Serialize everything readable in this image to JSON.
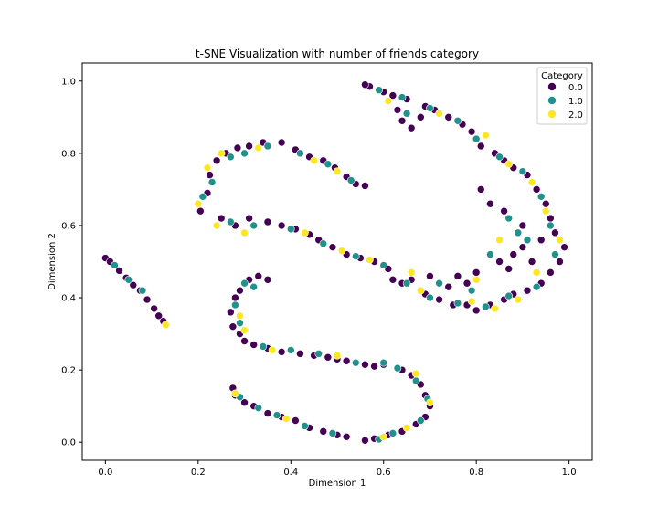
{
  "chart_data": {
    "type": "scatter",
    "title": "t-SNE Visualization with number of friends category",
    "xlabel": "Dimension 1",
    "ylabel": "Dimension 2",
    "xlim": [
      -0.05,
      1.05
    ],
    "ylim": [
      -0.05,
      1.05
    ],
    "xticks": [
      0.0,
      0.2,
      0.4,
      0.6,
      0.8,
      1.0
    ],
    "yticks": [
      0.0,
      0.2,
      0.4,
      0.6,
      0.8,
      1.0
    ],
    "xtick_labels": [
      "0.0",
      "0.2",
      "0.4",
      "0.6",
      "0.8",
      "1.0"
    ],
    "ytick_labels": [
      "0.0",
      "0.2",
      "0.4",
      "0.6",
      "0.8",
      "1.0"
    ],
    "grid": false,
    "legend": {
      "title": "Category",
      "placement": "top-right",
      "entries": [
        "0.0",
        "1.0",
        "2.0"
      ]
    },
    "colors": {
      "0.0": "#440154",
      "1.0": "#21918c",
      "2.0": "#fde725"
    },
    "series": [
      {
        "name": "0.0",
        "points": [
          [
            0.0,
            0.51
          ],
          [
            0.01,
            0.5
          ],
          [
            0.03,
            0.475
          ],
          [
            0.045,
            0.455
          ],
          [
            0.06,
            0.435
          ],
          [
            0.075,
            0.42
          ],
          [
            0.09,
            0.395
          ],
          [
            0.105,
            0.37
          ],
          [
            0.115,
            0.35
          ],
          [
            0.125,
            0.335
          ],
          [
            0.205,
            0.64
          ],
          [
            0.22,
            0.69
          ],
          [
            0.225,
            0.74
          ],
          [
            0.24,
            0.78
          ],
          [
            0.26,
            0.8
          ],
          [
            0.285,
            0.815
          ],
          [
            0.31,
            0.82
          ],
          [
            0.34,
            0.83
          ],
          [
            0.38,
            0.83
          ],
          [
            0.41,
            0.81
          ],
          [
            0.44,
            0.79
          ],
          [
            0.47,
            0.78
          ],
          [
            0.495,
            0.76
          ],
          [
            0.52,
            0.735
          ],
          [
            0.54,
            0.715
          ],
          [
            0.56,
            0.71
          ],
          [
            0.25,
            0.62
          ],
          [
            0.28,
            0.6
          ],
          [
            0.31,
            0.62
          ],
          [
            0.35,
            0.61
          ],
          [
            0.38,
            0.6
          ],
          [
            0.41,
            0.59
          ],
          [
            0.44,
            0.575
          ],
          [
            0.46,
            0.56
          ],
          [
            0.49,
            0.54
          ],
          [
            0.52,
            0.52
          ],
          [
            0.55,
            0.51
          ],
          [
            0.58,
            0.5
          ],
          [
            0.61,
            0.48
          ],
          [
            0.62,
            0.45
          ],
          [
            0.64,
            0.44
          ],
          [
            0.66,
            0.45
          ],
          [
            0.69,
            0.41
          ],
          [
            0.72,
            0.395
          ],
          [
            0.75,
            0.38
          ],
          [
            0.78,
            0.38
          ],
          [
            0.8,
            0.365
          ],
          [
            0.83,
            0.38
          ],
          [
            0.86,
            0.395
          ],
          [
            0.88,
            0.41
          ],
          [
            0.91,
            0.42
          ],
          [
            0.94,
            0.44
          ],
          [
            0.96,
            0.47
          ],
          [
            0.98,
            0.5
          ],
          [
            0.99,
            0.54
          ],
          [
            0.97,
            0.58
          ],
          [
            0.96,
            0.62
          ],
          [
            0.95,
            0.66
          ],
          [
            0.93,
            0.7
          ],
          [
            0.91,
            0.74
          ],
          [
            0.88,
            0.76
          ],
          [
            0.86,
            0.78
          ],
          [
            0.84,
            0.8
          ],
          [
            0.81,
            0.82
          ],
          [
            0.79,
            0.86
          ],
          [
            0.77,
            0.88
          ],
          [
            0.74,
            0.9
          ],
          [
            0.71,
            0.92
          ],
          [
            0.69,
            0.93
          ],
          [
            0.65,
            0.95
          ],
          [
            0.62,
            0.96
          ],
          [
            0.6,
            0.97
          ],
          [
            0.57,
            0.985
          ],
          [
            0.56,
            0.99
          ],
          [
            0.63,
            0.92
          ],
          [
            0.66,
            0.87
          ],
          [
            0.68,
            0.9
          ],
          [
            0.64,
            0.89
          ],
          [
            0.27,
            0.36
          ],
          [
            0.275,
            0.32
          ],
          [
            0.29,
            0.3
          ],
          [
            0.3,
            0.28
          ],
          [
            0.32,
            0.27
          ],
          [
            0.35,
            0.26
          ],
          [
            0.38,
            0.25
          ],
          [
            0.42,
            0.245
          ],
          [
            0.45,
            0.24
          ],
          [
            0.48,
            0.235
          ],
          [
            0.5,
            0.23
          ],
          [
            0.52,
            0.225
          ],
          [
            0.56,
            0.215
          ],
          [
            0.58,
            0.21
          ],
          [
            0.6,
            0.215
          ],
          [
            0.64,
            0.2
          ],
          [
            0.66,
            0.185
          ],
          [
            0.68,
            0.16
          ],
          [
            0.69,
            0.13
          ],
          [
            0.7,
            0.1
          ],
          [
            0.69,
            0.07
          ],
          [
            0.67,
            0.05
          ],
          [
            0.64,
            0.03
          ],
          [
            0.61,
            0.02
          ],
          [
            0.58,
            0.01
          ],
          [
            0.56,
            0.005
          ],
          [
            0.52,
            0.015
          ],
          [
            0.5,
            0.02
          ],
          [
            0.47,
            0.03
          ],
          [
            0.44,
            0.04
          ],
          [
            0.41,
            0.06
          ],
          [
            0.38,
            0.07
          ],
          [
            0.35,
            0.08
          ],
          [
            0.32,
            0.1
          ],
          [
            0.3,
            0.11
          ],
          [
            0.28,
            0.13
          ],
          [
            0.275,
            0.15
          ],
          [
            0.29,
            0.42
          ],
          [
            0.31,
            0.45
          ],
          [
            0.33,
            0.46
          ],
          [
            0.35,
            0.45
          ],
          [
            0.28,
            0.4
          ],
          [
            0.85,
            0.5
          ],
          [
            0.88,
            0.52
          ],
          [
            0.9,
            0.54
          ],
          [
            0.87,
            0.48
          ],
          [
            0.92,
            0.5
          ],
          [
            0.94,
            0.56
          ],
          [
            0.9,
            0.6
          ],
          [
            0.86,
            0.64
          ],
          [
            0.83,
            0.66
          ],
          [
            0.81,
            0.7
          ],
          [
            0.8,
            0.47
          ],
          [
            0.78,
            0.44
          ],
          [
            0.76,
            0.46
          ],
          [
            0.74,
            0.43
          ],
          [
            0.7,
            0.46
          ]
        ]
      },
      {
        "name": "1.0",
        "points": [
          [
            0.02,
            0.49
          ],
          [
            0.05,
            0.45
          ],
          [
            0.08,
            0.42
          ],
          [
            0.21,
            0.68
          ],
          [
            0.23,
            0.72
          ],
          [
            0.27,
            0.79
          ],
          [
            0.3,
            0.8
          ],
          [
            0.35,
            0.82
          ],
          [
            0.42,
            0.8
          ],
          [
            0.48,
            0.77
          ],
          [
            0.53,
            0.725
          ],
          [
            0.27,
            0.61
          ],
          [
            0.32,
            0.6
          ],
          [
            0.4,
            0.59
          ],
          [
            0.47,
            0.55
          ],
          [
            0.54,
            0.515
          ],
          [
            0.6,
            0.49
          ],
          [
            0.65,
            0.44
          ],
          [
            0.7,
            0.4
          ],
          [
            0.76,
            0.385
          ],
          [
            0.82,
            0.375
          ],
          [
            0.87,
            0.405
          ],
          [
            0.93,
            0.43
          ],
          [
            0.97,
            0.52
          ],
          [
            0.96,
            0.6
          ],
          [
            0.94,
            0.68
          ],
          [
            0.9,
            0.75
          ],
          [
            0.85,
            0.79
          ],
          [
            0.8,
            0.84
          ],
          [
            0.76,
            0.89
          ],
          [
            0.7,
            0.925
          ],
          [
            0.64,
            0.955
          ],
          [
            0.59,
            0.975
          ],
          [
            0.65,
            0.91
          ],
          [
            0.3,
            0.44
          ],
          [
            0.32,
            0.43
          ],
          [
            0.28,
            0.38
          ],
          [
            0.29,
            0.33
          ],
          [
            0.34,
            0.265
          ],
          [
            0.4,
            0.255
          ],
          [
            0.46,
            0.245
          ],
          [
            0.54,
            0.22
          ],
          [
            0.6,
            0.22
          ],
          [
            0.63,
            0.205
          ],
          [
            0.67,
            0.17
          ],
          [
            0.695,
            0.12
          ],
          [
            0.68,
            0.06
          ],
          [
            0.62,
            0.025
          ],
          [
            0.59,
            0.008
          ],
          [
            0.49,
            0.025
          ],
          [
            0.43,
            0.045
          ],
          [
            0.37,
            0.075
          ],
          [
            0.33,
            0.095
          ],
          [
            0.29,
            0.125
          ],
          [
            0.91,
            0.56
          ],
          [
            0.89,
            0.58
          ],
          [
            0.87,
            0.62
          ],
          [
            0.83,
            0.52
          ],
          [
            0.79,
            0.42
          ],
          [
            0.72,
            0.44
          ]
        ]
      },
      {
        "name": "2.0",
        "points": [
          [
            0.13,
            0.325
          ],
          [
            0.2,
            0.66
          ],
          [
            0.22,
            0.76
          ],
          [
            0.25,
            0.8
          ],
          [
            0.33,
            0.815
          ],
          [
            0.45,
            0.78
          ],
          [
            0.5,
            0.75
          ],
          [
            0.24,
            0.6
          ],
          [
            0.3,
            0.58
          ],
          [
            0.43,
            0.58
          ],
          [
            0.51,
            0.53
          ],
          [
            0.57,
            0.505
          ],
          [
            0.68,
            0.42
          ],
          [
            0.79,
            0.39
          ],
          [
            0.84,
            0.37
          ],
          [
            0.89,
            0.395
          ],
          [
            0.98,
            0.56
          ],
          [
            0.95,
            0.64
          ],
          [
            0.92,
            0.72
          ],
          [
            0.87,
            0.77
          ],
          [
            0.82,
            0.85
          ],
          [
            0.72,
            0.91
          ],
          [
            0.61,
            0.945
          ],
          [
            0.29,
            0.35
          ],
          [
            0.3,
            0.31
          ],
          [
            0.36,
            0.255
          ],
          [
            0.5,
            0.24
          ],
          [
            0.67,
            0.19
          ],
          [
            0.7,
            0.11
          ],
          [
            0.65,
            0.04
          ],
          [
            0.6,
            0.015
          ],
          [
            0.39,
            0.065
          ],
          [
            0.28,
            0.135
          ],
          [
            0.93,
            0.47
          ],
          [
            0.85,
            0.56
          ],
          [
            0.8,
            0.45
          ],
          [
            0.66,
            0.47
          ]
        ]
      }
    ]
  }
}
